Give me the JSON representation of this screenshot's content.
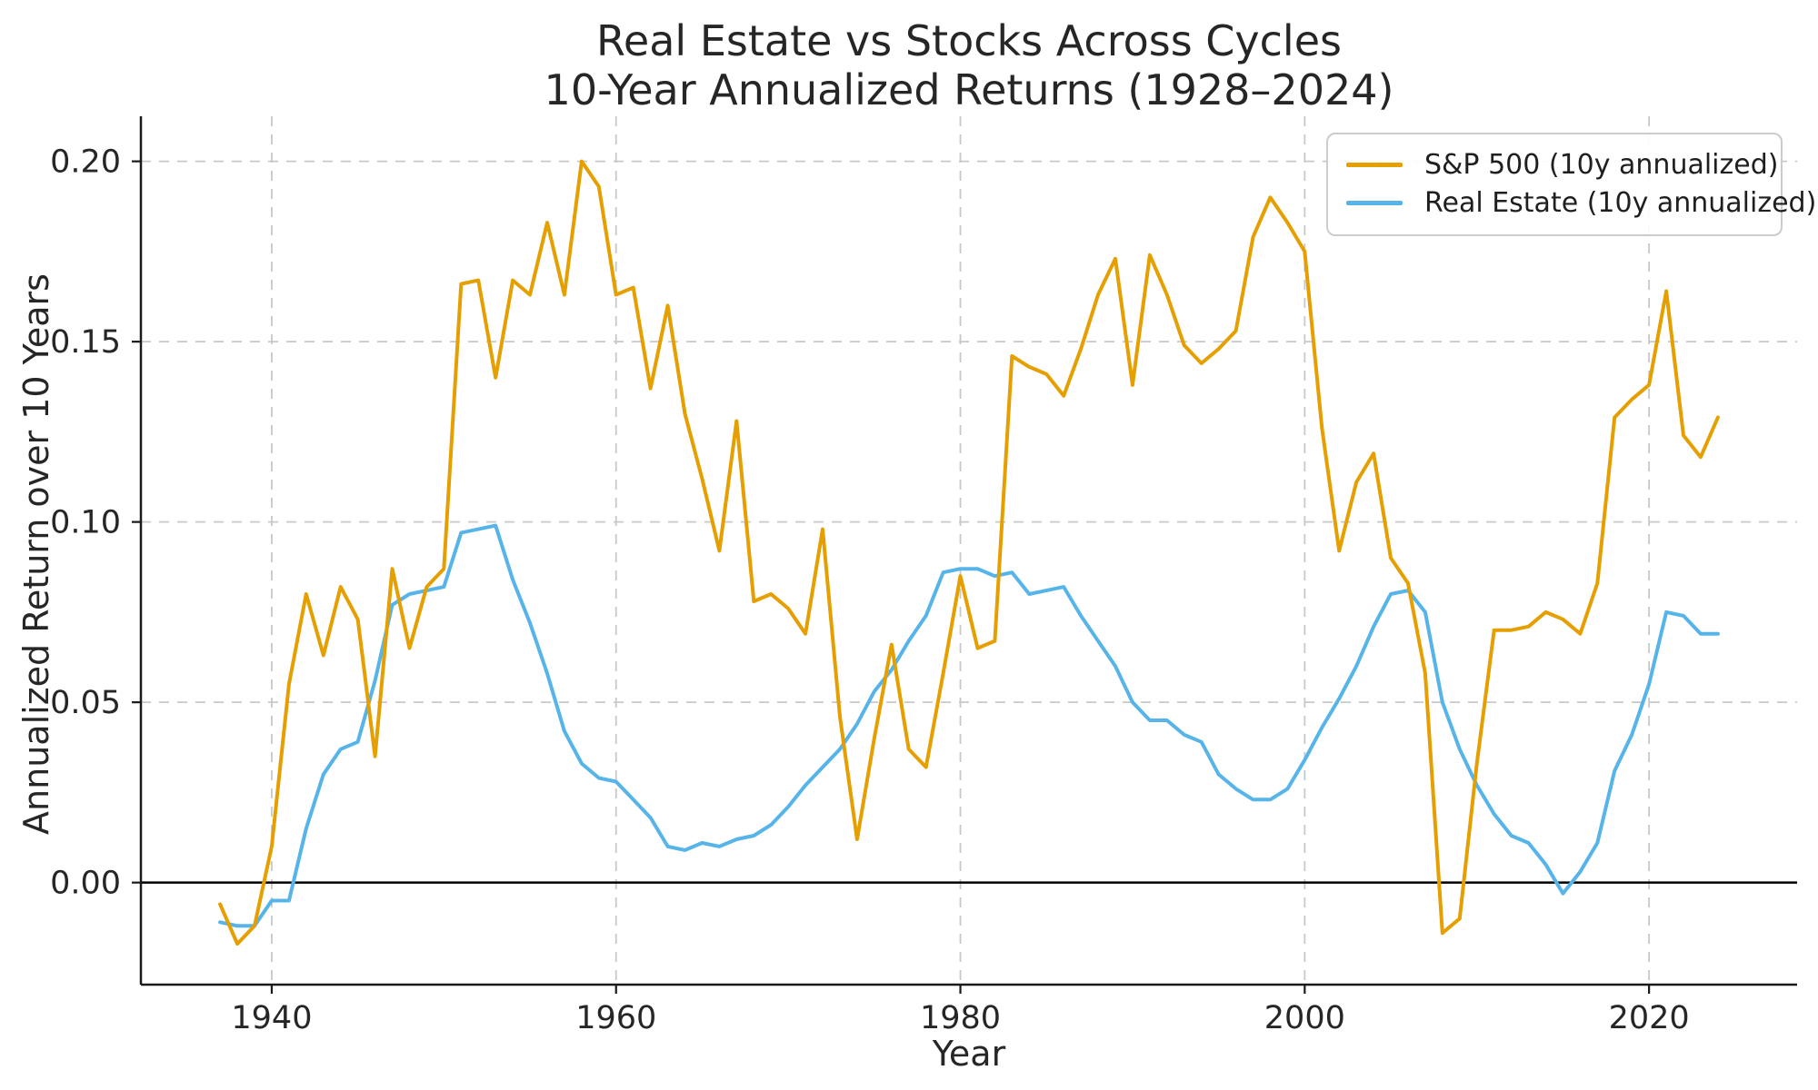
{
  "page": {
    "background": "#ffffff",
    "text_color": "#262626",
    "grid_color": "#c8c8c8",
    "spine_color": "#1a1a1a"
  },
  "chart_data": {
    "type": "line",
    "title": "Real Estate vs Stocks Across Cycles",
    "subtitle": "10-Year Annualized Returns (1928–2024)",
    "xlabel": "Year",
    "ylabel": "Annualized Return over 10 Years",
    "x_start_year": 1937,
    "x_end_year": 2024,
    "xlim": [
      1932.4,
      2028.6
    ],
    "ylim": [
      -0.0283,
      0.2125
    ],
    "xticks": [
      1940,
      1960,
      1980,
      2000,
      2020
    ],
    "yticks": [
      0.0,
      0.05,
      0.1,
      0.15,
      0.2
    ],
    "ytick_labels": [
      "0.00",
      "0.05",
      "0.10",
      "0.15",
      "0.20"
    ],
    "grid": {
      "visible": true,
      "style": "dashed",
      "color": "#c8c8c8"
    },
    "zero_line": {
      "value": 0.0,
      "color": "#000000"
    },
    "legend": {
      "position": "upper right",
      "background": "#ffffff",
      "border_color": "#cccccc"
    },
    "series": [
      {
        "name": "S&P 500 (10y annualized)",
        "color": "#E69F00",
        "values": [
          -0.006,
          -0.017,
          -0.012,
          0.01,
          0.055,
          0.08,
          0.063,
          0.082,
          0.073,
          0.035,
          0.087,
          0.065,
          0.082,
          0.087,
          0.166,
          0.167,
          0.14,
          0.167,
          0.163,
          0.183,
          0.163,
          0.2,
          0.193,
          0.163,
          0.165,
          0.137,
          0.16,
          0.13,
          0.112,
          0.092,
          0.128,
          0.078,
          0.08,
          0.076,
          0.069,
          0.098,
          0.046,
          0.012,
          0.04,
          0.066,
          0.037,
          0.032,
          0.058,
          0.085,
          0.065,
          0.067,
          0.146,
          0.143,
          0.141,
          0.135,
          0.148,
          0.163,
          0.173,
          0.138,
          0.174,
          0.163,
          0.149,
          0.144,
          0.148,
          0.153,
          0.179,
          0.19,
          0.183,
          0.175,
          0.126,
          0.092,
          0.111,
          0.119,
          0.09,
          0.083,
          0.058,
          -0.014,
          -0.01,
          0.033,
          0.07,
          0.07,
          0.071,
          0.075,
          0.073,
          0.069,
          0.083,
          0.129,
          0.134,
          0.138,
          0.164,
          0.124,
          0.118,
          0.129
        ]
      },
      {
        "name": "Real Estate (10y annualized)",
        "color": "#56B4E9",
        "values": [
          -0.011,
          -0.012,
          -0.012,
          -0.005,
          -0.005,
          0.015,
          0.03,
          0.037,
          0.039,
          0.056,
          0.077,
          0.08,
          0.081,
          0.082,
          0.097,
          0.098,
          0.099,
          0.084,
          0.072,
          0.058,
          0.042,
          0.033,
          0.029,
          0.028,
          0.023,
          0.018,
          0.01,
          0.009,
          0.011,
          0.01,
          0.012,
          0.013,
          0.016,
          0.021,
          0.027,
          0.032,
          0.037,
          0.044,
          0.053,
          0.059,
          0.067,
          0.074,
          0.086,
          0.087,
          0.087,
          0.085,
          0.086,
          0.08,
          0.081,
          0.082,
          0.074,
          0.067,
          0.06,
          0.05,
          0.045,
          0.045,
          0.041,
          0.039,
          0.03,
          0.026,
          0.023,
          0.023,
          0.026,
          0.034,
          0.043,
          0.051,
          0.06,
          0.071,
          0.08,
          0.081,
          0.075,
          0.05,
          0.037,
          0.027,
          0.019,
          0.013,
          0.011,
          0.005,
          -0.003,
          0.003,
          0.011,
          0.031,
          0.041,
          0.055,
          0.075,
          0.074,
          0.069,
          0.069
        ]
      }
    ]
  }
}
